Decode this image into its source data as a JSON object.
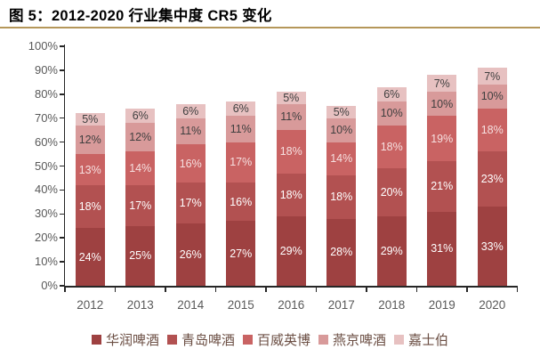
{
  "figure": {
    "title": "图 5：2012-2020 行业集中度 CR5 变化"
  },
  "chart_data": {
    "type": "bar",
    "stacked": true,
    "title": "2012-2020 行业集中度 CR5 变化",
    "categories": [
      "2012",
      "2013",
      "2014",
      "2015",
      "2016",
      "2017",
      "2018",
      "2019",
      "2020"
    ],
    "series": [
      {
        "name": "华润啤酒",
        "color": "#9e4141",
        "label_color": "#ffffff",
        "values": [
          24,
          25,
          26,
          27,
          29,
          28,
          29,
          31,
          33
        ]
      },
      {
        "name": "青岛啤酒",
        "color": "#b25151",
        "label_color": "#ffffff",
        "values": [
          18,
          17,
          17,
          16,
          18,
          18,
          20,
          21,
          23
        ]
      },
      {
        "name": "百威英博",
        "color": "#c96363",
        "label_color": "#f6e0e0",
        "values": [
          13,
          14,
          16,
          17,
          18,
          14,
          18,
          19,
          18
        ]
      },
      {
        "name": "燕京啤酒",
        "color": "#d89a9a",
        "label_color": "#3f3f3f",
        "values": [
          12,
          12,
          11,
          11,
          11,
          10,
          10,
          10,
          10
        ]
      },
      {
        "name": "嘉士伯",
        "color": "#e7c1c1",
        "label_color": "#3f3f3f",
        "values": [
          5,
          6,
          6,
          6,
          5,
          5,
          6,
          7,
          7
        ]
      }
    ],
    "totals": [
      72,
      74,
      76,
      77,
      81,
      75,
      83,
      88,
      91
    ],
    "ylim": [
      0,
      100
    ],
    "y_tick_step": 10,
    "y_tick_suffix": "%",
    "y_tick_labels": [
      "0%",
      "10%",
      "20%",
      "30%",
      "40%",
      "50%",
      "60%",
      "70%",
      "80%",
      "90%",
      "100%"
    ],
    "data_label_suffix": "%",
    "legend_position": "bottom",
    "gridlines": false
  },
  "style": {
    "title_color": "#000000",
    "divider_color": "#b5975a",
    "axis_color": "#262626",
    "axis_label_color": "#595959",
    "legend_text_color": "#6b4e43",
    "background": "#ffffff"
  }
}
